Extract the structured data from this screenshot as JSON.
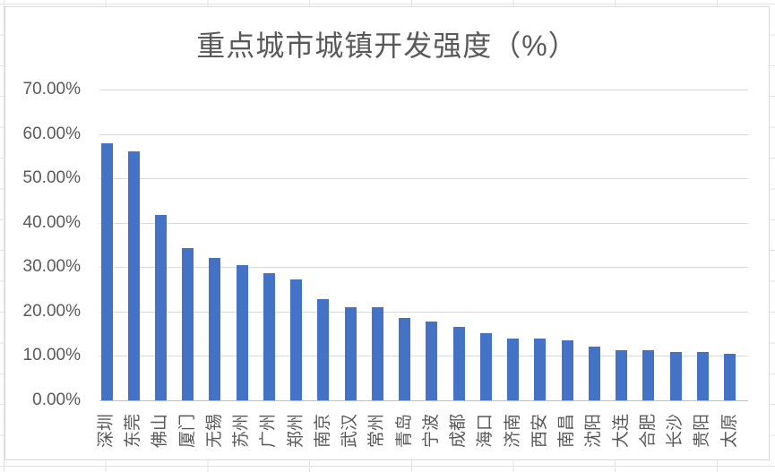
{
  "chart_data": {
    "type": "bar",
    "title": "重点城市城镇开发强度（%）",
    "categories": [
      "深圳",
      "东莞",
      "佛山",
      "厦门",
      "无锡",
      "苏州",
      "广州",
      "郑州",
      "南京",
      "武汉",
      "常州",
      "青岛",
      "宁波",
      "成都",
      "海口",
      "济南",
      "西安",
      "南昌",
      "沈阳",
      "大连",
      "合肥",
      "长沙",
      "贵阳",
      "太原"
    ],
    "values": [
      57.9,
      56.1,
      41.8,
      34.2,
      32.0,
      30.5,
      28.7,
      27.2,
      22.7,
      21.0,
      21.0,
      18.5,
      17.8,
      16.5,
      15.2,
      14.0,
      14.0,
      13.5,
      12.1,
      11.3,
      11.3,
      10.9,
      10.9,
      10.4
    ],
    "unit": "%",
    "ylim": [
      0,
      70
    ],
    "y_tick_values": [
      0,
      10,
      20,
      30,
      40,
      50,
      60,
      70
    ],
    "y_tick_labels": [
      "0.00%",
      "10.00%",
      "20.00%",
      "30.00%",
      "40.00%",
      "50.00%",
      "60.00%",
      "70.00%"
    ],
    "x_label_rotation": -90,
    "grid": true,
    "legend": false
  },
  "colors": {
    "bar": "#4472C4",
    "gridline": "#D9D9D9",
    "axis_line": "#BFBFBF",
    "text": "#595959",
    "chart_border": "#D9D9D9",
    "sheet_line": "#E2E2E2"
  }
}
